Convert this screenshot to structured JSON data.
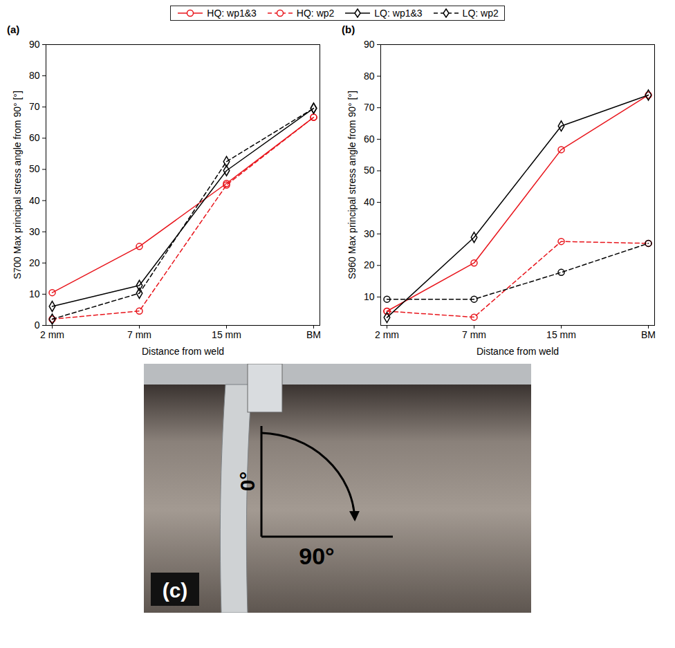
{
  "chart_data": [
    {
      "type": "line",
      "panel": "(a)",
      "x_label": "Distance from weld",
      "y_label": "S700 Max principal stress angle from 90° [°]",
      "categories": [
        "2 mm",
        "7 mm",
        "15 mm",
        "BM"
      ],
      "ylim": [
        0,
        90
      ],
      "yticks": [
        0,
        10,
        20,
        30,
        40,
        50,
        60,
        70,
        80,
        90
      ],
      "grid": false,
      "legend": "top",
      "series": [
        {
          "name": "HQ: wp1&3",
          "color": "#e8141b",
          "marker": "circle",
          "line_style": "solid",
          "values": [
            10.5,
            25.3,
            45.5,
            66.7
          ]
        },
        {
          "name": "HQ: wp2",
          "color": "#e8141b",
          "marker": "circle",
          "line_style": "dashed",
          "values": [
            2.0,
            4.6,
            45.0,
            66.7
          ]
        },
        {
          "name": "LQ: wp1&3",
          "color": "#000000",
          "marker": "diamond",
          "line_style": "solid",
          "values": [
            6.1,
            12.8,
            49.6,
            69.6
          ]
        },
        {
          "name": "LQ: wp2",
          "color": "#000000",
          "marker": "diamond",
          "line_style": "dashed",
          "values": [
            2.0,
            10.3,
            52.5,
            69.6
          ]
        }
      ]
    },
    {
      "type": "line",
      "panel": "(b)",
      "x_label": "Distance from weld",
      "y_label": "S960 Max principal stress angle from 90° [°]",
      "categories": [
        "2 mm",
        "7 mm",
        "15 mm",
        "BM"
      ],
      "ylim": [
        1,
        90
      ],
      "yticks": [
        10,
        20,
        30,
        40,
        50,
        60,
        70,
        80,
        90
      ],
      "grid": false,
      "legend": "top",
      "series": [
        {
          "name": "HQ: wp1&3",
          "color": "#e8141b",
          "marker": "circle",
          "line_style": "solid",
          "values": [
            5.5,
            20.8,
            56.7,
            74.0
          ]
        },
        {
          "name": "HQ: wp2",
          "color": "#e8141b",
          "marker": "circle",
          "line_style": "dashed",
          "values": [
            5.5,
            3.6,
            27.6,
            27.0
          ]
        },
        {
          "name": "LQ: wp1&3",
          "color": "#000000",
          "marker": "diamond",
          "line_style": "solid",
          "values": [
            3.5,
            28.9,
            64.2,
            74.0
          ]
        },
        {
          "name": "LQ: wp2",
          "color": "#000000",
          "marker": "circle",
          "line_style": "dashed",
          "values": [
            9.3,
            9.3,
            17.8,
            27.0
          ]
        }
      ]
    }
  ],
  "photo_panel": {
    "label": "(c)",
    "angle_start": "0°",
    "angle_end": "90°"
  }
}
